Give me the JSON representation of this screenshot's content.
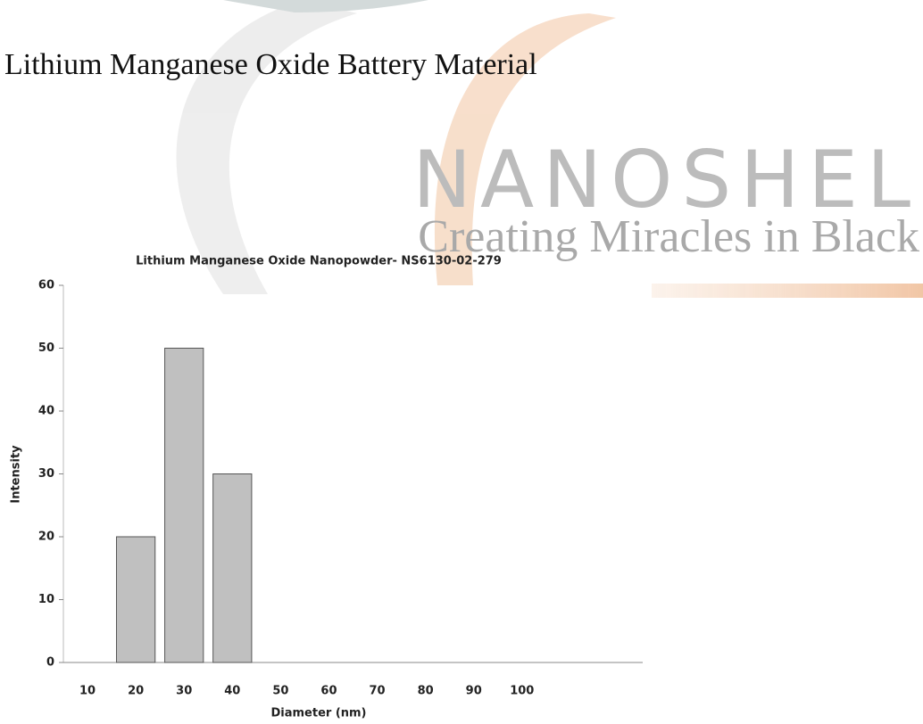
{
  "heading": "Lithium Manganese Oxide Battery Material",
  "watermark": {
    "brand": "NANOSHEL",
    "tagline": "Creating Miracles in Black"
  },
  "chart_data": {
    "type": "bar",
    "title": "Lithium Manganese Oxide Nanopowder- NS6130-02-279",
    "x_label": "Diameter (nm)",
    "y_label": "Intensity",
    "categories": [
      "10",
      "20",
      "30",
      "40",
      "50",
      "60",
      "70",
      "80",
      "90",
      "100",
      null,
      null
    ],
    "values": [
      0,
      20,
      50,
      30,
      0,
      0,
      0,
      0,
      0,
      0,
      null,
      null
    ],
    "color": "#c0c0c0",
    "ylim": [
      0,
      60
    ],
    "yticks": [
      0,
      10,
      20,
      30,
      40,
      50,
      60
    ],
    "grid": false
  }
}
